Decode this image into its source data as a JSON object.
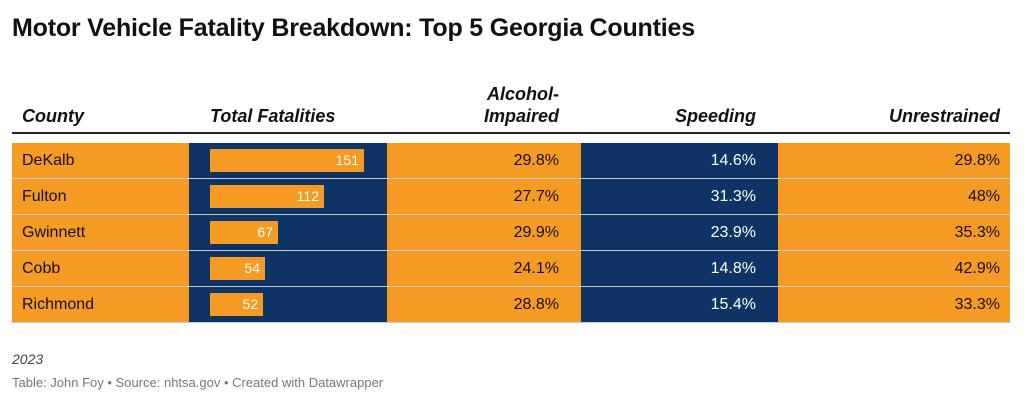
{
  "title": "Motor Vehicle Fatality Breakdown: Top 5 Georgia Counties",
  "columns": {
    "county": "County",
    "total": "Total Fatalities",
    "alcohol_line1": "Alcohol-",
    "alcohol_line2": "Impaired",
    "speeding": "Speeding",
    "unrestrained": "Unrestrained"
  },
  "colors": {
    "orange": "#f59a23",
    "navy": "#0d3464"
  },
  "chart_data": {
    "type": "table",
    "title": "Motor Vehicle Fatality Breakdown: Top 5 Georgia Counties",
    "bar_max": 151,
    "rows": [
      {
        "county": "DeKalb",
        "total": 151,
        "alcohol": "29.8%",
        "speeding": "14.6%",
        "unrestrained": "29.8%"
      },
      {
        "county": "Fulton",
        "total": 112,
        "alcohol": "27.7%",
        "speeding": "31.3%",
        "unrestrained": "48%"
      },
      {
        "county": "Gwinnett",
        "total": 67,
        "alcohol": "29.9%",
        "speeding": "23.9%",
        "unrestrained": "35.3%"
      },
      {
        "county": "Cobb",
        "total": 54,
        "alcohol": "24.1%",
        "speeding": "14.8%",
        "unrestrained": "42.9%"
      },
      {
        "county": "Richmond",
        "total": 52,
        "alcohol": "28.8%",
        "speeding": "15.4%",
        "unrestrained": "33.3%"
      }
    ]
  },
  "footer": {
    "year": "2023",
    "source": "Table: John Foy • Source: nhtsa.gov • Created with Datawrapper"
  }
}
